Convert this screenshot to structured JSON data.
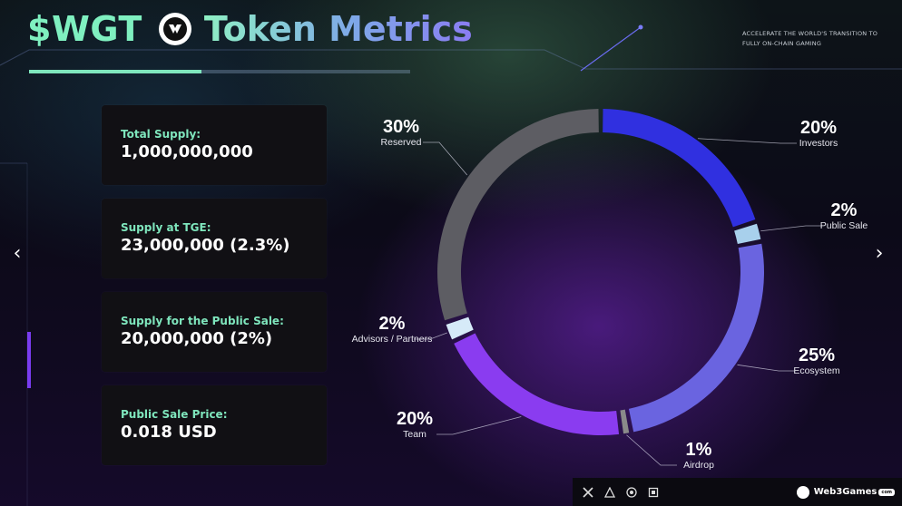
{
  "header": {
    "ticker": "$WGT",
    "title": "Token Metrics",
    "tagline": "ACCELERATE THE WORLD'S TRANSITION TO FULLY ON-CHAIN GAMING"
  },
  "cards": [
    {
      "label": "Total Supply:",
      "value": "1,000,000,000"
    },
    {
      "label": "Supply at TGE:",
      "value": "23,000,000 (2.3%)"
    },
    {
      "label": "Supply for the Public Sale:",
      "value": "20,000,000 (2%)"
    },
    {
      "label": "Public Sale Price:",
      "value": "0.018 USD"
    }
  ],
  "nav": {
    "prev": "‹",
    "next": "›"
  },
  "footer": {
    "brand": "Web3Games",
    "brand_suffix": "com",
    "social_icons": [
      "x-icon",
      "discord-icon",
      "telegram-icon",
      "medium-icon"
    ]
  },
  "colors": {
    "ticker": "#7ff0c0",
    "card_label": "#7fe6bd",
    "reserved": "#5d5d63",
    "investors": "#3030e0",
    "public_sale": "#a8d0ec",
    "ecosystem": "#6a64e0",
    "airdrop": "#8a8a8a",
    "team": "#8a3cf0",
    "advisors": "#d6eaf8"
  },
  "chart_data": {
    "type": "pie",
    "title": "",
    "slices": [
      {
        "label": "Investors",
        "value": 20,
        "display": "20%",
        "color": "#3030e0"
      },
      {
        "label": "Public Sale",
        "value": 2,
        "display": "2%",
        "color": "#a8d0ec"
      },
      {
        "label": "Ecosystem",
        "value": 25,
        "display": "25%",
        "color": "#6a64e0"
      },
      {
        "label": "Airdrop",
        "value": 1,
        "display": "1%",
        "color": "#8a8a8a"
      },
      {
        "label": "Team",
        "value": 20,
        "display": "20%",
        "color": "#8a3cf0"
      },
      {
        "label": "Advisors / Partners",
        "value": 2,
        "display": "2%",
        "color": "#d6eaf8"
      },
      {
        "label": "Reserved",
        "value": 30,
        "display": "30%",
        "color": "#5d5d63"
      }
    ],
    "start_angle_deg": 0,
    "direction": "clockwise",
    "donut": true
  }
}
